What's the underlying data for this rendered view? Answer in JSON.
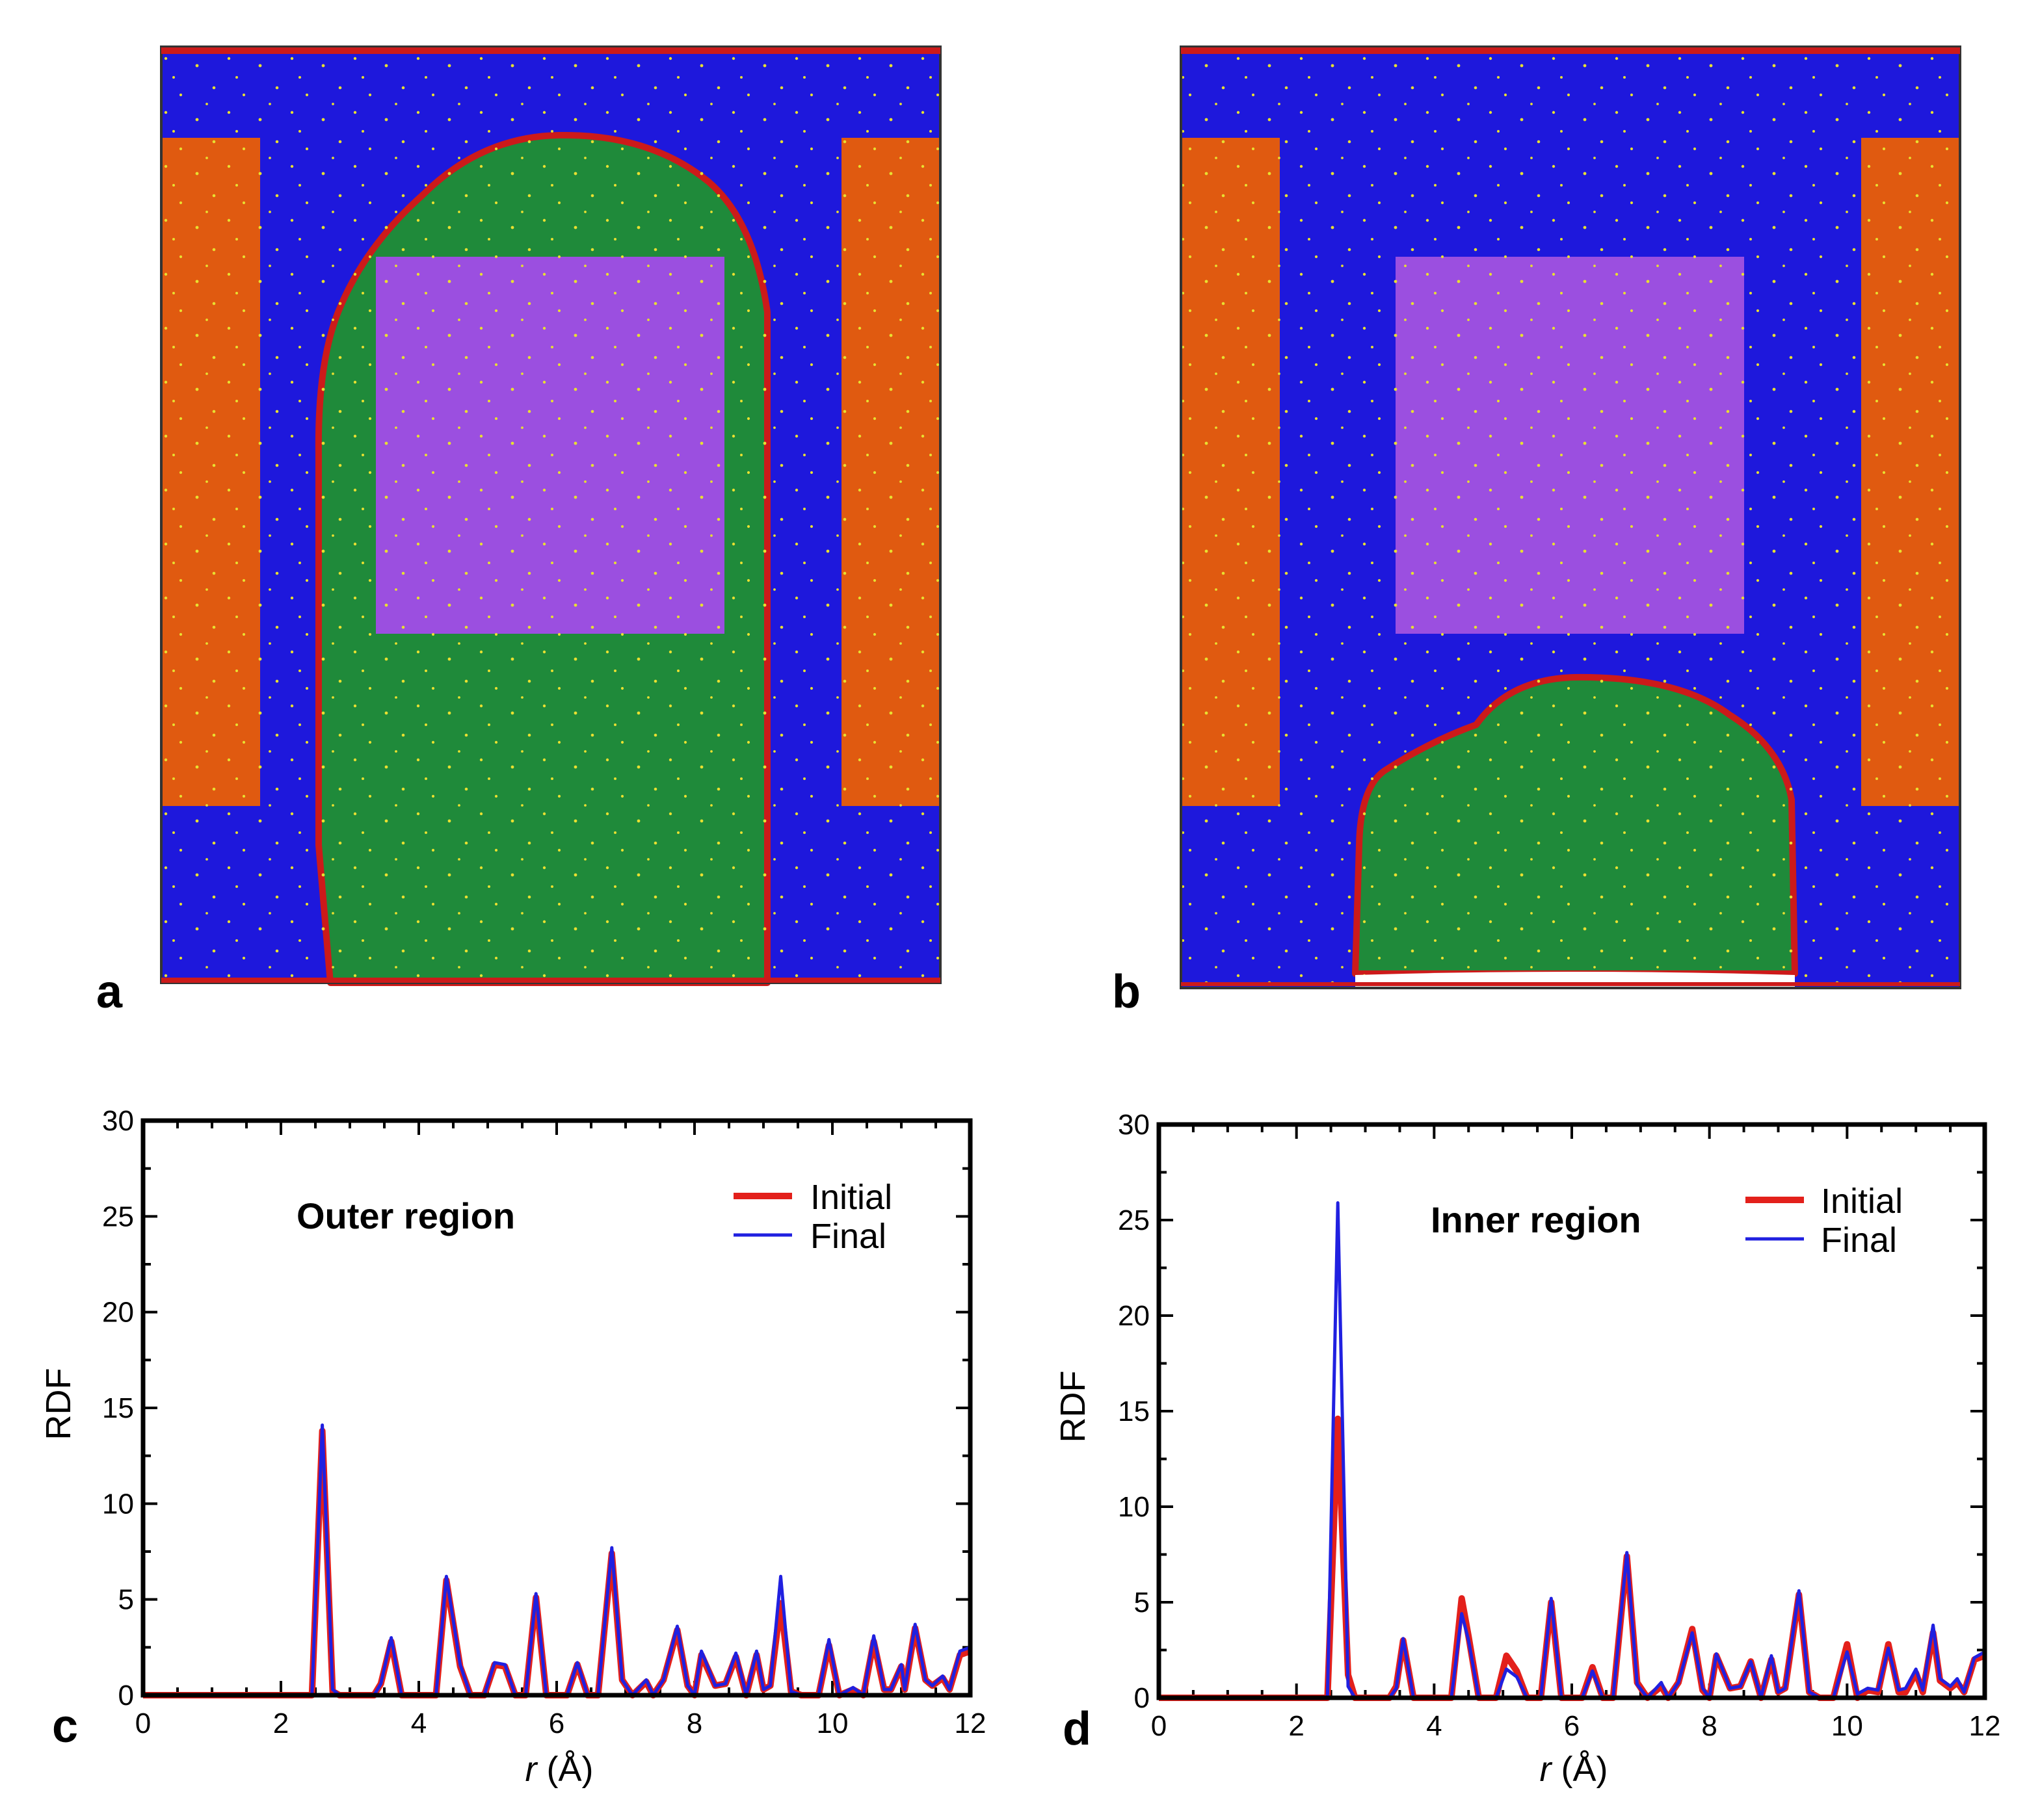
{
  "panels": {
    "a": {
      "label": "a"
    },
    "b": {
      "label": "b"
    }
  },
  "sim_colors": {
    "background_phase": "#1e18dc",
    "electrode_left": "#e05a10",
    "electrode_right": "#e05a10",
    "center_block": "#9b4fe0",
    "droplet": "#1f8a3a",
    "interface": "#cc1a1a",
    "particles": "#e8e030"
  },
  "chart_data": [
    {
      "type": "line",
      "panel_label": "c",
      "title": "Outer region",
      "xlabel_var": "r",
      "xlabel_unit": " (Å)",
      "ylabel": "RDF",
      "xlim": [
        0,
        12
      ],
      "ylim": [
        0,
        30
      ],
      "xticks": [
        "0",
        "2",
        "4",
        "6",
        "8",
        "10",
        "12"
      ],
      "yticks": [
        "0",
        "5",
        "10",
        "15",
        "20",
        "25",
        "30"
      ],
      "legend": [
        {
          "name": "Initial",
          "color": "#e3201b"
        },
        {
          "name": "Final",
          "color": "#2020e0"
        }
      ],
      "series": [
        {
          "name": "Initial",
          "color": "#e3201b",
          "points": [
            [
              2.45,
              0
            ],
            [
              2.6,
              13.8
            ],
            [
              2.75,
              0.2
            ],
            [
              2.85,
              0
            ],
            [
              3.35,
              0
            ],
            [
              3.45,
              0.6
            ],
            [
              3.6,
              2.8
            ],
            [
              3.75,
              0
            ],
            [
              4.25,
              0
            ],
            [
              4.4,
              6.0
            ],
            [
              4.6,
              1.5
            ],
            [
              4.75,
              0
            ],
            [
              4.95,
              0
            ],
            [
              5.1,
              1.6
            ],
            [
              5.25,
              1.5
            ],
            [
              5.4,
              0
            ],
            [
              5.55,
              0
            ],
            [
              5.7,
              5.1
            ],
            [
              5.85,
              0
            ],
            [
              6.15,
              0
            ],
            [
              6.3,
              1.6
            ],
            [
              6.45,
              0
            ],
            [
              6.6,
              0
            ],
            [
              6.8,
              7.4
            ],
            [
              6.95,
              0.8
            ],
            [
              7.1,
              0
            ],
            [
              7.3,
              0.7
            ],
            [
              7.4,
              0
            ],
            [
              7.55,
              0.8
            ],
            [
              7.75,
              3.4
            ],
            [
              7.9,
              0.5
            ],
            [
              8.0,
              0
            ],
            [
              8.1,
              2.1
            ],
            [
              8.3,
              0.5
            ],
            [
              8.45,
              0.6
            ],
            [
              8.6,
              2.0
            ],
            [
              8.75,
              0
            ],
            [
              8.9,
              2.1
            ],
            [
              9.0,
              0.3
            ],
            [
              9.1,
              0.5
            ],
            [
              9.25,
              4.8
            ],
            [
              9.4,
              0.2
            ],
            [
              9.55,
              0
            ],
            [
              9.8,
              0
            ],
            [
              9.95,
              2.6
            ],
            [
              10.1,
              0
            ],
            [
              10.3,
              0.3
            ],
            [
              10.45,
              0
            ],
            [
              10.6,
              2.8
            ],
            [
              10.75,
              0.3
            ],
            [
              10.85,
              0.3
            ],
            [
              11.0,
              1.5
            ],
            [
              11.05,
              0.3
            ],
            [
              11.2,
              3.5
            ],
            [
              11.35,
              0.8
            ],
            [
              11.45,
              0.5
            ],
            [
              11.6,
              0.9
            ],
            [
              11.7,
              0.3
            ],
            [
              11.85,
              2.1
            ],
            [
              12.0,
              2.3
            ]
          ]
        },
        {
          "name": "Final",
          "color": "#2020e0",
          "points": [
            [
              2.45,
              0
            ],
            [
              2.6,
              14.1
            ],
            [
              2.75,
              0.3
            ],
            [
              2.85,
              0
            ],
            [
              3.35,
              0
            ],
            [
              3.45,
              0.6
            ],
            [
              3.6,
              3.0
            ],
            [
              3.75,
              0
            ],
            [
              4.25,
              0
            ],
            [
              4.4,
              6.2
            ],
            [
              4.6,
              1.6
            ],
            [
              4.75,
              0
            ],
            [
              4.95,
              0
            ],
            [
              5.1,
              1.7
            ],
            [
              5.25,
              1.6
            ],
            [
              5.4,
              0
            ],
            [
              5.55,
              0
            ],
            [
              5.7,
              5.3
            ],
            [
              5.85,
              0
            ],
            [
              6.15,
              0
            ],
            [
              6.3,
              1.7
            ],
            [
              6.45,
              0
            ],
            [
              6.6,
              0
            ],
            [
              6.8,
              7.7
            ],
            [
              6.95,
              0.8
            ],
            [
              7.1,
              0
            ],
            [
              7.3,
              0.8
            ],
            [
              7.4,
              0
            ],
            [
              7.55,
              0.8
            ],
            [
              7.75,
              3.6
            ],
            [
              7.9,
              0.5
            ],
            [
              8.0,
              0
            ],
            [
              8.1,
              2.3
            ],
            [
              8.3,
              0.5
            ],
            [
              8.45,
              0.6
            ],
            [
              8.6,
              2.2
            ],
            [
              8.75,
              0
            ],
            [
              8.9,
              2.3
            ],
            [
              9.0,
              0.3
            ],
            [
              9.1,
              0.5
            ],
            [
              9.25,
              6.2
            ],
            [
              9.4,
              0.2
            ],
            [
              9.55,
              0
            ],
            [
              9.8,
              0
            ],
            [
              9.95,
              2.9
            ],
            [
              10.1,
              0
            ],
            [
              10.3,
              0.4
            ],
            [
              10.45,
              0
            ],
            [
              10.6,
              3.1
            ],
            [
              10.75,
              0.3
            ],
            [
              10.85,
              0.3
            ],
            [
              11.0,
              1.6
            ],
            [
              11.05,
              0.3
            ],
            [
              11.2,
              3.7
            ],
            [
              11.35,
              0.8
            ],
            [
              11.45,
              0.5
            ],
            [
              11.6,
              1.0
            ],
            [
              11.7,
              0.3
            ],
            [
              11.85,
              2.3
            ],
            [
              12.0,
              2.5
            ]
          ]
        }
      ]
    },
    {
      "type": "line",
      "panel_label": "d",
      "title": "Inner region",
      "xlabel_var": "r",
      "xlabel_unit": " (Å)",
      "ylabel": "RDF",
      "xlim": [
        0,
        12
      ],
      "ylim": [
        0,
        30
      ],
      "xticks": [
        "0",
        "2",
        "4",
        "6",
        "8",
        "10",
        "12"
      ],
      "yticks": [
        "0",
        "5",
        "10",
        "15",
        "20",
        "25",
        "30"
      ],
      "legend": [
        {
          "name": "Initial",
          "color": "#e3201b"
        },
        {
          "name": "Final",
          "color": "#2020e0"
        }
      ],
      "series": [
        {
          "name": "Initial",
          "color": "#e3201b",
          "points": [
            [
              2.45,
              0
            ],
            [
              2.6,
              14.6
            ],
            [
              2.75,
              1.2
            ],
            [
              2.85,
              0
            ],
            [
              3.35,
              0
            ],
            [
              3.45,
              0.6
            ],
            [
              3.55,
              3.0
            ],
            [
              3.7,
              0
            ],
            [
              4.25,
              0
            ],
            [
              4.4,
              5.2
            ],
            [
              4.5,
              3.2
            ],
            [
              4.65,
              0
            ],
            [
              4.9,
              0
            ],
            [
              5.05,
              2.2
            ],
            [
              5.2,
              1.4
            ],
            [
              5.35,
              0
            ],
            [
              5.55,
              0
            ],
            [
              5.7,
              5.0
            ],
            [
              5.85,
              0
            ],
            [
              6.15,
              0
            ],
            [
              6.3,
              1.6
            ],
            [
              6.45,
              0
            ],
            [
              6.6,
              0
            ],
            [
              6.8,
              7.4
            ],
            [
              6.95,
              0.8
            ],
            [
              7.1,
              0
            ],
            [
              7.3,
              0.6
            ],
            [
              7.4,
              0
            ],
            [
              7.55,
              0.8
            ],
            [
              7.75,
              3.6
            ],
            [
              7.9,
              0.4
            ],
            [
              8.0,
              0
            ],
            [
              8.1,
              2.2
            ],
            [
              8.3,
              0.5
            ],
            [
              8.45,
              0.6
            ],
            [
              8.6,
              1.9
            ],
            [
              8.75,
              0
            ],
            [
              8.9,
              2.0
            ],
            [
              9.0,
              0.3
            ],
            [
              9.1,
              0.5
            ],
            [
              9.3,
              5.4
            ],
            [
              9.45,
              0.3
            ],
            [
              9.6,
              0
            ],
            [
              9.8,
              0
            ],
            [
              10.0,
              2.8
            ],
            [
              10.15,
              0
            ],
            [
              10.3,
              0.4
            ],
            [
              10.45,
              0.3
            ],
            [
              10.6,
              2.8
            ],
            [
              10.75,
              0.3
            ],
            [
              10.85,
              0.3
            ],
            [
              11.0,
              1.3
            ],
            [
              11.1,
              0.3
            ],
            [
              11.25,
              3.4
            ],
            [
              11.35,
              0.9
            ],
            [
              11.5,
              0.5
            ],
            [
              11.6,
              0.8
            ],
            [
              11.7,
              0.3
            ],
            [
              11.85,
              2.0
            ],
            [
              12.0,
              2.2
            ]
          ]
        },
        {
          "name": "Final",
          "color": "#2020e0",
          "points": [
            [
              2.45,
              0
            ],
            [
              2.6,
              25.9
            ],
            [
              2.75,
              0.6
            ],
            [
              2.85,
              0
            ],
            [
              3.35,
              0
            ],
            [
              3.45,
              0.5
            ],
            [
              3.55,
              3.1
            ],
            [
              3.7,
              0
            ],
            [
              4.25,
              0
            ],
            [
              4.4,
              4.4
            ],
            [
              4.5,
              3.0
            ],
            [
              4.65,
              0
            ],
            [
              4.9,
              0
            ],
            [
              5.05,
              1.5
            ],
            [
              5.2,
              1.1
            ],
            [
              5.35,
              0
            ],
            [
              5.55,
              0
            ],
            [
              5.7,
              5.2
            ],
            [
              5.85,
              0
            ],
            [
              6.15,
              0
            ],
            [
              6.3,
              1.4
            ],
            [
              6.45,
              0
            ],
            [
              6.6,
              0
            ],
            [
              6.8,
              7.6
            ],
            [
              6.95,
              0.7
            ],
            [
              7.1,
              0
            ],
            [
              7.3,
              0.8
            ],
            [
              7.4,
              0
            ],
            [
              7.55,
              0.8
            ],
            [
              7.75,
              3.4
            ],
            [
              7.9,
              0.5
            ],
            [
              8.0,
              0
            ],
            [
              8.1,
              2.3
            ],
            [
              8.3,
              0.5
            ],
            [
              8.45,
              0.6
            ],
            [
              8.6,
              1.9
            ],
            [
              8.75,
              0
            ],
            [
              8.9,
              2.2
            ],
            [
              9.0,
              0.3
            ],
            [
              9.1,
              0.5
            ],
            [
              9.3,
              5.6
            ],
            [
              9.45,
              0.3
            ],
            [
              9.6,
              0
            ],
            [
              9.8,
              0
            ],
            [
              10.0,
              2.4
            ],
            [
              10.15,
              0.2
            ],
            [
              10.3,
              0.5
            ],
            [
              10.45,
              0.4
            ],
            [
              10.6,
              2.6
            ],
            [
              10.75,
              0.4
            ],
            [
              10.85,
              0.5
            ],
            [
              11.0,
              1.5
            ],
            [
              11.1,
              0.4
            ],
            [
              11.25,
              3.8
            ],
            [
              11.35,
              1.0
            ],
            [
              11.5,
              0.6
            ],
            [
              11.6,
              1.0
            ],
            [
              11.7,
              0.3
            ],
            [
              11.85,
              2.1
            ],
            [
              12.0,
              2.4
            ]
          ]
        }
      ]
    }
  ]
}
